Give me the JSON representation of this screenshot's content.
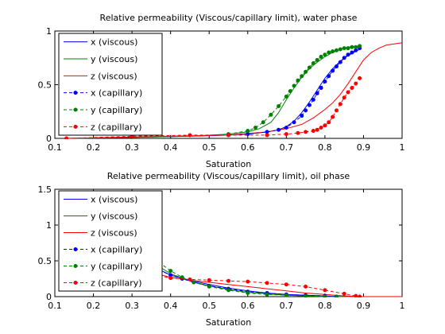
{
  "chart_data": [
    {
      "type": "line",
      "title": "Relative permeability (Viscous/capillary limit), water phase",
      "xlabel": "Saturation",
      "ylabel": "",
      "xlim": [
        0.1,
        1
      ],
      "ylim": [
        0,
        1
      ],
      "xticks": [
        "0.1",
        "0.2",
        "0.3",
        "0.4",
        "0.5",
        "0.6",
        "0.7",
        "0.8",
        "0.9",
        "1"
      ],
      "yticks": [
        "0",
        "0.5",
        "1"
      ],
      "legend_position": "top-left",
      "series": [
        {
          "name": "x (viscous)",
          "color": "#0000ff",
          "style": "solid",
          "marker": "none",
          "x": [
            0.13,
            0.3,
            0.45,
            0.55,
            0.6,
            0.65,
            0.68,
            0.7,
            0.72,
            0.74,
            0.76,
            0.78,
            0.8,
            0.82,
            0.84,
            0.86,
            0.88,
            0.89
          ],
          "y": [
            0.0,
            0.01,
            0.02,
            0.03,
            0.04,
            0.06,
            0.08,
            0.11,
            0.16,
            0.24,
            0.34,
            0.45,
            0.56,
            0.65,
            0.72,
            0.77,
            0.81,
            0.83
          ]
        },
        {
          "name": "y (viscous)",
          "color": "#008000",
          "style": "solid",
          "marker": "none",
          "x": [
            0.13,
            0.3,
            0.45,
            0.55,
            0.6,
            0.63,
            0.66,
            0.68,
            0.7,
            0.72,
            0.74,
            0.76,
            0.78,
            0.8,
            0.82,
            0.84,
            0.86,
            0.89
          ],
          "y": [
            0.0,
            0.01,
            0.02,
            0.04,
            0.06,
            0.09,
            0.15,
            0.24,
            0.36,
            0.47,
            0.57,
            0.65,
            0.71,
            0.76,
            0.8,
            0.83,
            0.85,
            0.86
          ]
        },
        {
          "name": "z (viscous)",
          "color": "#ff0000",
          "style": "solid",
          "marker": "none",
          "x": [
            0.13,
            0.4,
            0.55,
            0.65,
            0.7,
            0.74,
            0.77,
            0.8,
            0.82,
            0.84,
            0.86,
            0.88,
            0.9,
            0.92,
            0.94,
            0.96,
            0.98,
            1.0
          ],
          "y": [
            0.0,
            0.02,
            0.03,
            0.06,
            0.09,
            0.13,
            0.19,
            0.27,
            0.33,
            0.41,
            0.51,
            0.62,
            0.73,
            0.8,
            0.84,
            0.87,
            0.88,
            0.89
          ]
        },
        {
          "name": "x (capillary)",
          "color": "#0000ff",
          "style": "dashed",
          "marker": "dot",
          "x": [
            0.55,
            0.6,
            0.65,
            0.68,
            0.7,
            0.72,
            0.74,
            0.75,
            0.76,
            0.77,
            0.78,
            0.79,
            0.8,
            0.81,
            0.82,
            0.83,
            0.84,
            0.85,
            0.86,
            0.87,
            0.88,
            0.89
          ],
          "y": [
            0.03,
            0.04,
            0.06,
            0.08,
            0.1,
            0.15,
            0.21,
            0.26,
            0.31,
            0.36,
            0.42,
            0.47,
            0.53,
            0.58,
            0.63,
            0.67,
            0.71,
            0.75,
            0.78,
            0.8,
            0.82,
            0.84
          ]
        },
        {
          "name": "y (capillary)",
          "color": "#008000",
          "style": "dashed",
          "marker": "dot",
          "x": [
            0.55,
            0.6,
            0.62,
            0.64,
            0.66,
            0.68,
            0.7,
            0.71,
            0.72,
            0.73,
            0.74,
            0.75,
            0.76,
            0.77,
            0.78,
            0.79,
            0.8,
            0.81,
            0.82,
            0.83,
            0.84,
            0.85,
            0.86,
            0.87,
            0.88,
            0.89
          ],
          "y": [
            0.04,
            0.07,
            0.1,
            0.15,
            0.22,
            0.3,
            0.39,
            0.44,
            0.49,
            0.54,
            0.58,
            0.62,
            0.66,
            0.7,
            0.73,
            0.76,
            0.78,
            0.8,
            0.81,
            0.82,
            0.83,
            0.84,
            0.84,
            0.85,
            0.85,
            0.86
          ]
        },
        {
          "name": "z (capillary)",
          "color": "#ff0000",
          "style": "dashed",
          "marker": "dot",
          "x": [
            0.13,
            0.3,
            0.45,
            0.55,
            0.65,
            0.7,
            0.73,
            0.75,
            0.77,
            0.78,
            0.79,
            0.8,
            0.81,
            0.82,
            0.83,
            0.84,
            0.85,
            0.86,
            0.87,
            0.88,
            0.89
          ],
          "y": [
            0.0,
            0.02,
            0.03,
            0.03,
            0.03,
            0.04,
            0.05,
            0.06,
            0.07,
            0.08,
            0.1,
            0.12,
            0.15,
            0.2,
            0.26,
            0.32,
            0.38,
            0.43,
            0.47,
            0.51,
            0.56
          ]
        }
      ]
    },
    {
      "type": "line",
      "title": "Relative permeability (Viscous/capillary limit), oil phase",
      "xlabel": "Saturation",
      "ylabel": "",
      "xlim": [
        0.1,
        1
      ],
      "ylim": [
        0,
        1.5
      ],
      "xticks": [
        "0.1",
        "0.2",
        "0.3",
        "0.4",
        "0.5",
        "0.6",
        "0.7",
        "0.8",
        "0.9",
        "1"
      ],
      "yticks": [
        "0",
        "0.5",
        "1",
        "1.5"
      ],
      "legend_position": "top-left",
      "series": [
        {
          "name": "x (viscous)",
          "color": "#0000ff",
          "style": "solid",
          "marker": "none",
          "x": [
            0.37,
            0.4,
            0.45,
            0.5,
            0.55,
            0.6,
            0.65,
            0.7,
            0.75,
            0.8,
            0.85,
            0.9,
            1.0
          ],
          "y": [
            0.38,
            0.3,
            0.23,
            0.17,
            0.12,
            0.08,
            0.05,
            0.03,
            0.02,
            0.01,
            0.0,
            0.0,
            0.0
          ]
        },
        {
          "name": "y (viscous)",
          "color": "#008000",
          "style": "solid",
          "marker": "none",
          "x": [
            0.37,
            0.4,
            0.45,
            0.5,
            0.55,
            0.6,
            0.65,
            0.7,
            0.75,
            0.8,
            0.85,
            0.9,
            1.0
          ],
          "y": [
            0.42,
            0.32,
            0.22,
            0.15,
            0.1,
            0.06,
            0.04,
            0.02,
            0.01,
            0.0,
            0.0,
            0.0,
            0.0
          ]
        },
        {
          "name": "z (viscous)",
          "color": "#ff0000",
          "style": "solid",
          "marker": "none",
          "x": [
            0.37,
            0.4,
            0.45,
            0.5,
            0.55,
            0.6,
            0.65,
            0.7,
            0.75,
            0.8,
            0.85,
            0.9,
            0.95,
            1.0
          ],
          "y": [
            0.31,
            0.27,
            0.23,
            0.2,
            0.17,
            0.14,
            0.11,
            0.08,
            0.05,
            0.03,
            0.01,
            0.0,
            0.0,
            0.0
          ]
        },
        {
          "name": "x (capillary)",
          "color": "#0000ff",
          "style": "dashed",
          "marker": "dot",
          "x": [
            0.37,
            0.4,
            0.43,
            0.46,
            0.5,
            0.55,
            0.6,
            0.65,
            0.7,
            0.75,
            0.8,
            0.83
          ],
          "y": [
            0.37,
            0.3,
            0.25,
            0.2,
            0.15,
            0.11,
            0.07,
            0.05,
            0.03,
            0.02,
            0.01,
            0.0
          ]
        },
        {
          "name": "y (capillary)",
          "color": "#008000",
          "style": "dashed",
          "marker": "dot",
          "x": [
            0.37,
            0.4,
            0.43,
            0.46,
            0.5,
            0.55,
            0.6,
            0.65,
            0.7,
            0.75,
            0.8,
            0.83
          ],
          "y": [
            0.48,
            0.36,
            0.27,
            0.2,
            0.14,
            0.09,
            0.05,
            0.03,
            0.02,
            0.01,
            0.0,
            0.0
          ]
        },
        {
          "name": "z (capillary)",
          "color": "#ff0000",
          "style": "dashed",
          "marker": "dot",
          "x": [
            0.37,
            0.4,
            0.45,
            0.5,
            0.55,
            0.6,
            0.65,
            0.7,
            0.75,
            0.8,
            0.85,
            0.88,
            0.89
          ],
          "y": [
            0.29,
            0.26,
            0.24,
            0.23,
            0.22,
            0.21,
            0.19,
            0.17,
            0.14,
            0.09,
            0.04,
            0.01,
            0.0
          ]
        }
      ]
    }
  ]
}
